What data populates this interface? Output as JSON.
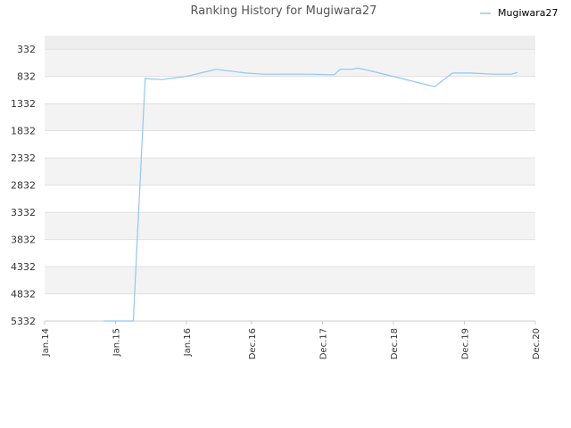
{
  "chart_data": {
    "type": "line",
    "title": "Ranking History for Mugiwara27",
    "xlabel": "",
    "ylabel": "",
    "y_inverted": true,
    "ylim": [
      5332,
      82
    ],
    "y_ticks": [
      "332",
      "832",
      "1332",
      "1832",
      "2332",
      "2832",
      "3332",
      "3832",
      "4332",
      "4832",
      "5332"
    ],
    "x_ticks": [
      "Jan.14",
      "Jan.15",
      "Jan.16",
      "Dec.16",
      "Dec.17",
      "Dec.18",
      "Dec.19",
      "Dec.20"
    ],
    "grid": true,
    "legend_position": "top-right",
    "colors": {
      "series": "#90c8f0",
      "band": "#f2f2f2",
      "grid": "#e0e0e0",
      "axis": "#cccccc"
    },
    "series": [
      {
        "name": "Mugiwara27",
        "points": [
          [
            "2014-11",
            5332
          ],
          [
            "2015-04",
            5332
          ],
          [
            "2015-06",
            870
          ],
          [
            "2015-07",
            880
          ],
          [
            "2015-09",
            890
          ],
          [
            "2015-11",
            860
          ],
          [
            "2016-01",
            830
          ],
          [
            "2016-03",
            780
          ],
          [
            "2016-06",
            700
          ],
          [
            "2016-11",
            770
          ],
          [
            "2017-02",
            790
          ],
          [
            "2017-05",
            790
          ],
          [
            "2017-10",
            790
          ],
          [
            "2018-01",
            800
          ],
          [
            "2018-02",
            800
          ],
          [
            "2018-03",
            700
          ],
          [
            "2018-05",
            700
          ],
          [
            "2018-06",
            680
          ],
          [
            "2018-07",
            700
          ],
          [
            "2018-10",
            780
          ],
          [
            "2019-07",
            1020
          ],
          [
            "2019-10",
            770
          ],
          [
            "2020-01",
            770
          ],
          [
            "2020-05",
            790
          ],
          [
            "2020-08",
            790
          ],
          [
            "2020-09",
            760
          ]
        ]
      }
    ]
  }
}
